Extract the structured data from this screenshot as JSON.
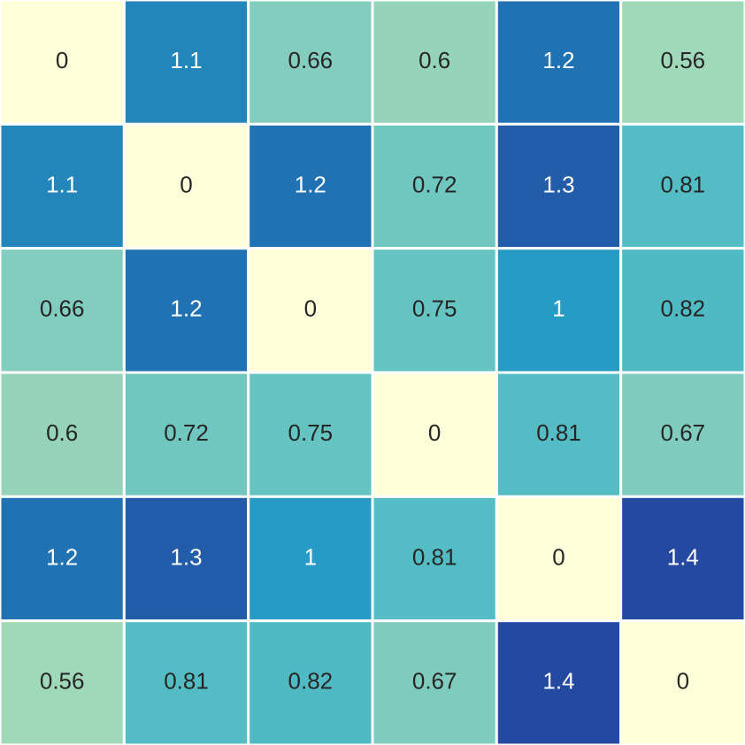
{
  "chart_data": {
    "type": "heatmap",
    "values": [
      [
        0,
        1.1,
        0.66,
        0.6,
        1.2,
        0.56
      ],
      [
        1.1,
        0,
        1.2,
        0.72,
        1.3,
        0.81
      ],
      [
        0.66,
        1.2,
        0,
        0.75,
        1,
        0.82
      ],
      [
        0.6,
        0.72,
        0.75,
        0,
        0.81,
        0.67
      ],
      [
        1.2,
        1.3,
        1,
        0.81,
        0,
        1.4
      ],
      [
        0.56,
        0.81,
        0.82,
        0.67,
        1.4,
        0
      ]
    ],
    "colorscale": [
      "#ffffd9",
      "#f2fabb",
      "#cdebb5",
      "#95d4bb",
      "#55bec4",
      "#259bc5",
      "#2172b2",
      "#2449a0"
    ]
  }
}
